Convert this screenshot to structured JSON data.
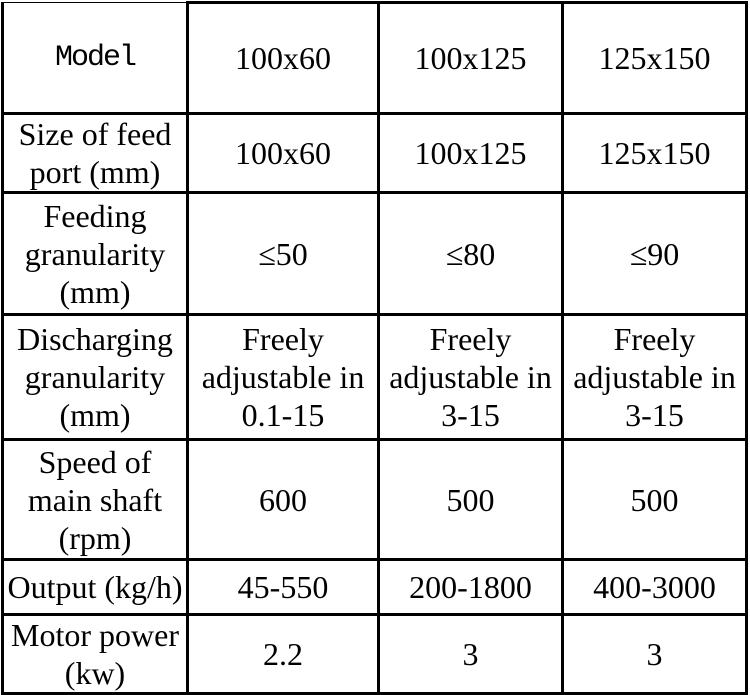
{
  "page": {
    "background": "#ffffff",
    "border_color": "#000000",
    "text_color": "#000000"
  },
  "table": {
    "description": "Machine specification table with 4 columns and 7 rows",
    "rows": [
      {
        "label": "Model",
        "values": [
          "100x60",
          "100x125",
          "125x150"
        ]
      },
      {
        "label": "Size of feed\nport (mm)",
        "values": [
          "100x60",
          "100x125",
          "125x150"
        ]
      },
      {
        "label": "Feeding\ngranularity\n(mm)",
        "values": [
          "≤50",
          "≤80",
          "≤90"
        ]
      },
      {
        "label": "Discharging\ngranularity\n(mm)",
        "values": [
          "Freely\nadjustable in\n0.1-15",
          "Freely\nadjustable in\n3-15",
          "Freely\nadjustable in\n3-15"
        ]
      },
      {
        "label": "Speed of\nmain shaft\n(rpm)",
        "values": [
          "600",
          "500",
          "500"
        ]
      },
      {
        "label": "Output (kg/h)",
        "values": [
          "45-550",
          "200-1800",
          "400-3000"
        ]
      },
      {
        "label": "Motor power\n(kw)",
        "values": [
          "2.2",
          "3",
          "3"
        ]
      }
    ]
  }
}
